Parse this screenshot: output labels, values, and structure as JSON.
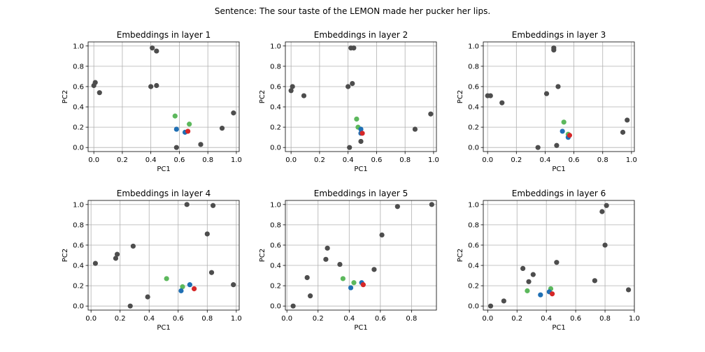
{
  "suptitle": "Sentence: The sour taste of the LEMON made her pucker her lips.",
  "colors": {
    "other": "#4d4d4d",
    "green": "#5cb85c",
    "blue": "#1f6fb4",
    "red": "#d62728"
  },
  "chart_data": [
    {
      "type": "scatter",
      "title": "Embeddings in layer 1",
      "xlabel": "PC1",
      "ylabel": "PC2",
      "xlim": [
        -0.04,
        1.02
      ],
      "ylim": [
        -0.04,
        1.04
      ],
      "xticks": [
        "0.0",
        "0.2",
        "0.4",
        "0.6",
        "0.8",
        "1.0"
      ],
      "xtick_values": [
        0,
        0.2,
        0.4,
        0.6,
        0.8,
        1.0
      ],
      "yticks": [
        "0.0",
        "0.2",
        "0.4",
        "0.6",
        "0.8",
        "1.0"
      ],
      "ytick_values": [
        0,
        0.2,
        0.4,
        0.6,
        0.8,
        1.0
      ],
      "grid": true,
      "points": [
        {
          "x": 0.0,
          "y": 0.61,
          "c": "other"
        },
        {
          "x": 0.01,
          "y": 0.64,
          "c": "other"
        },
        {
          "x": 0.04,
          "y": 0.54,
          "c": "other"
        },
        {
          "x": 0.41,
          "y": 0.98,
          "c": "other"
        },
        {
          "x": 0.44,
          "y": 0.95,
          "c": "other"
        },
        {
          "x": 0.4,
          "y": 0.6,
          "c": "other"
        },
        {
          "x": 0.44,
          "y": 0.61,
          "c": "other"
        },
        {
          "x": 0.58,
          "y": 0.0,
          "c": "other"
        },
        {
          "x": 0.75,
          "y": 0.03,
          "c": "other"
        },
        {
          "x": 0.9,
          "y": 0.19,
          "c": "other"
        },
        {
          "x": 0.98,
          "y": 0.34,
          "c": "other"
        },
        {
          "x": 0.57,
          "y": 0.31,
          "c": "green"
        },
        {
          "x": 0.67,
          "y": 0.23,
          "c": "green"
        },
        {
          "x": 0.58,
          "y": 0.18,
          "c": "blue"
        },
        {
          "x": 0.64,
          "y": 0.15,
          "c": "blue"
        },
        {
          "x": 0.66,
          "y": 0.16,
          "c": "red"
        }
      ]
    },
    {
      "type": "scatter",
      "title": "Embeddings in layer 2",
      "xlabel": "PC1",
      "ylabel": "PC2",
      "xlim": [
        -0.04,
        1.02
      ],
      "ylim": [
        -0.04,
        1.04
      ],
      "xticks": [
        "0.0",
        "0.2",
        "0.4",
        "0.6",
        "0.8",
        "1.0"
      ],
      "xtick_values": [
        0,
        0.2,
        0.4,
        0.6,
        0.8,
        1.0
      ],
      "yticks": [
        "0.0",
        "0.2",
        "0.4",
        "0.6",
        "0.8",
        "1.0"
      ],
      "ytick_values": [
        0,
        0.2,
        0.4,
        0.6,
        0.8,
        1.0
      ],
      "grid": true,
      "points": [
        {
          "x": 0.0,
          "y": 0.56,
          "c": "other"
        },
        {
          "x": 0.01,
          "y": 0.6,
          "c": "other"
        },
        {
          "x": 0.09,
          "y": 0.51,
          "c": "other"
        },
        {
          "x": 0.42,
          "y": 0.98,
          "c": "other"
        },
        {
          "x": 0.44,
          "y": 0.98,
          "c": "other"
        },
        {
          "x": 0.4,
          "y": 0.6,
          "c": "other"
        },
        {
          "x": 0.43,
          "y": 0.63,
          "c": "other"
        },
        {
          "x": 0.41,
          "y": 0.0,
          "c": "other"
        },
        {
          "x": 0.49,
          "y": 0.06,
          "c": "other"
        },
        {
          "x": 0.87,
          "y": 0.18,
          "c": "other"
        },
        {
          "x": 0.98,
          "y": 0.33,
          "c": "other"
        },
        {
          "x": 0.46,
          "y": 0.28,
          "c": "green"
        },
        {
          "x": 0.47,
          "y": 0.2,
          "c": "green"
        },
        {
          "x": 0.49,
          "y": 0.18,
          "c": "blue"
        },
        {
          "x": 0.49,
          "y": 0.14,
          "c": "blue"
        },
        {
          "x": 0.5,
          "y": 0.14,
          "c": "red"
        }
      ]
    },
    {
      "type": "scatter",
      "title": "Embeddings in layer 3",
      "xlabel": "PC1",
      "ylabel": "PC2",
      "xlim": [
        -0.03,
        1.02
      ],
      "ylim": [
        -0.04,
        1.04
      ],
      "xticks": [
        "0.0",
        "0.2",
        "0.4",
        "0.6",
        "0.8",
        "1.0"
      ],
      "xtick_values": [
        0,
        0.2,
        0.4,
        0.6,
        0.8,
        1.0
      ],
      "yticks": [
        "0.0",
        "0.2",
        "0.4",
        "0.6",
        "0.8",
        "1.0"
      ],
      "ytick_values": [
        0,
        0.2,
        0.4,
        0.6,
        0.8,
        1.0
      ],
      "grid": true,
      "points": [
        {
          "x": 0.0,
          "y": 0.51,
          "c": "other"
        },
        {
          "x": 0.02,
          "y": 0.51,
          "c": "other"
        },
        {
          "x": 0.1,
          "y": 0.44,
          "c": "other"
        },
        {
          "x": 0.46,
          "y": 0.98,
          "c": "other"
        },
        {
          "x": 0.46,
          "y": 0.96,
          "c": "other"
        },
        {
          "x": 0.41,
          "y": 0.53,
          "c": "other"
        },
        {
          "x": 0.49,
          "y": 0.6,
          "c": "other"
        },
        {
          "x": 0.35,
          "y": 0.0,
          "c": "other"
        },
        {
          "x": 0.48,
          "y": 0.02,
          "c": "other"
        },
        {
          "x": 0.94,
          "y": 0.15,
          "c": "other"
        },
        {
          "x": 0.97,
          "y": 0.27,
          "c": "other"
        },
        {
          "x": 0.53,
          "y": 0.25,
          "c": "green"
        },
        {
          "x": 0.56,
          "y": 0.13,
          "c": "green"
        },
        {
          "x": 0.52,
          "y": 0.16,
          "c": "blue"
        },
        {
          "x": 0.56,
          "y": 0.1,
          "c": "blue"
        },
        {
          "x": 0.57,
          "y": 0.12,
          "c": "red"
        }
      ]
    },
    {
      "type": "scatter",
      "title": "Embeddings in layer 4",
      "xlabel": "PC1",
      "ylabel": "PC2",
      "xlim": [
        -0.02,
        1.02
      ],
      "ylim": [
        -0.04,
        1.04
      ],
      "xticks": [
        "0.0",
        "0.2",
        "0.4",
        "0.6",
        "0.8",
        "1.0"
      ],
      "xtick_values": [
        0,
        0.2,
        0.4,
        0.6,
        0.8,
        1.0
      ],
      "yticks": [
        "0.0",
        "0.2",
        "0.4",
        "0.6",
        "0.8",
        "1.0"
      ],
      "ytick_values": [
        0,
        0.2,
        0.4,
        0.6,
        0.8,
        1.0
      ],
      "grid": true,
      "points": [
        {
          "x": 0.03,
          "y": 0.42,
          "c": "other"
        },
        {
          "x": 0.17,
          "y": 0.47,
          "c": "other"
        },
        {
          "x": 0.18,
          "y": 0.51,
          "c": "other"
        },
        {
          "x": 0.29,
          "y": 0.59,
          "c": "other"
        },
        {
          "x": 0.27,
          "y": 0.0,
          "c": "other"
        },
        {
          "x": 0.39,
          "y": 0.09,
          "c": "other"
        },
        {
          "x": 0.66,
          "y": 1.0,
          "c": "other"
        },
        {
          "x": 0.84,
          "y": 0.99,
          "c": "other"
        },
        {
          "x": 0.8,
          "y": 0.71,
          "c": "other"
        },
        {
          "x": 0.83,
          "y": 0.33,
          "c": "other"
        },
        {
          "x": 0.98,
          "y": 0.21,
          "c": "other"
        },
        {
          "x": 0.52,
          "y": 0.27,
          "c": "green"
        },
        {
          "x": 0.63,
          "y": 0.19,
          "c": "green"
        },
        {
          "x": 0.62,
          "y": 0.15,
          "c": "blue"
        },
        {
          "x": 0.68,
          "y": 0.21,
          "c": "blue"
        },
        {
          "x": 0.71,
          "y": 0.17,
          "c": "red"
        }
      ]
    },
    {
      "type": "scatter",
      "title": "Embeddings in layer 5",
      "xlabel": "PC1",
      "ylabel": "PC2",
      "xlim": [
        -0.01,
        0.96
      ],
      "ylim": [
        -0.04,
        1.04
      ],
      "xticks": [
        "0.0",
        "0.2",
        "0.4",
        "0.6",
        "0.8"
      ],
      "xtick_values": [
        0,
        0.2,
        0.4,
        0.6,
        0.8
      ],
      "yticks": [
        "0.0",
        "0.2",
        "0.4",
        "0.6",
        "0.8",
        "1.0"
      ],
      "ytick_values": [
        0,
        0.2,
        0.4,
        0.6,
        0.8,
        1.0
      ],
      "grid": true,
      "points": [
        {
          "x": 0.04,
          "y": 0.0,
          "c": "other"
        },
        {
          "x": 0.13,
          "y": 0.28,
          "c": "other"
        },
        {
          "x": 0.15,
          "y": 0.1,
          "c": "other"
        },
        {
          "x": 0.25,
          "y": 0.46,
          "c": "other"
        },
        {
          "x": 0.26,
          "y": 0.57,
          "c": "other"
        },
        {
          "x": 0.34,
          "y": 0.41,
          "c": "other"
        },
        {
          "x": 0.56,
          "y": 0.36,
          "c": "other"
        },
        {
          "x": 0.61,
          "y": 0.7,
          "c": "other"
        },
        {
          "x": 0.71,
          "y": 0.98,
          "c": "other"
        },
        {
          "x": 0.93,
          "y": 1.0,
          "c": "other"
        },
        {
          "x": 0.36,
          "y": 0.27,
          "c": "green"
        },
        {
          "x": 0.43,
          "y": 0.23,
          "c": "green"
        },
        {
          "x": 0.41,
          "y": 0.18,
          "c": "blue"
        },
        {
          "x": 0.48,
          "y": 0.23,
          "c": "blue"
        },
        {
          "x": 0.49,
          "y": 0.21,
          "c": "red"
        }
      ]
    },
    {
      "type": "scatter",
      "title": "Embeddings in layer 6",
      "xlabel": "PC1",
      "ylabel": "PC2",
      "xlim": [
        -0.03,
        1.0
      ],
      "ylim": [
        -0.04,
        1.04
      ],
      "xticks": [
        "0.0",
        "0.2",
        "0.4",
        "0.6",
        "0.8",
        "1.0"
      ],
      "xtick_values": [
        0,
        0.2,
        0.4,
        0.6,
        0.8,
        1.0
      ],
      "yticks": [
        "0.0",
        "0.2",
        "0.4",
        "0.6",
        "0.8",
        "1.0"
      ],
      "ytick_values": [
        0,
        0.2,
        0.4,
        0.6,
        0.8,
        1.0
      ],
      "grid": true,
      "points": [
        {
          "x": 0.02,
          "y": 0.0,
          "c": "other"
        },
        {
          "x": 0.11,
          "y": 0.05,
          "c": "other"
        },
        {
          "x": 0.24,
          "y": 0.37,
          "c": "other"
        },
        {
          "x": 0.28,
          "y": 0.24,
          "c": "other"
        },
        {
          "x": 0.31,
          "y": 0.31,
          "c": "other"
        },
        {
          "x": 0.47,
          "y": 0.43,
          "c": "other"
        },
        {
          "x": 0.73,
          "y": 0.25,
          "c": "other"
        },
        {
          "x": 0.78,
          "y": 0.93,
          "c": "other"
        },
        {
          "x": 0.81,
          "y": 0.99,
          "c": "other"
        },
        {
          "x": 0.8,
          "y": 0.6,
          "c": "other"
        },
        {
          "x": 0.96,
          "y": 0.16,
          "c": "other"
        },
        {
          "x": 0.27,
          "y": 0.15,
          "c": "green"
        },
        {
          "x": 0.43,
          "y": 0.17,
          "c": "green"
        },
        {
          "x": 0.36,
          "y": 0.11,
          "c": "blue"
        },
        {
          "x": 0.42,
          "y": 0.14,
          "c": "blue"
        },
        {
          "x": 0.44,
          "y": 0.12,
          "c": "red"
        }
      ]
    }
  ]
}
